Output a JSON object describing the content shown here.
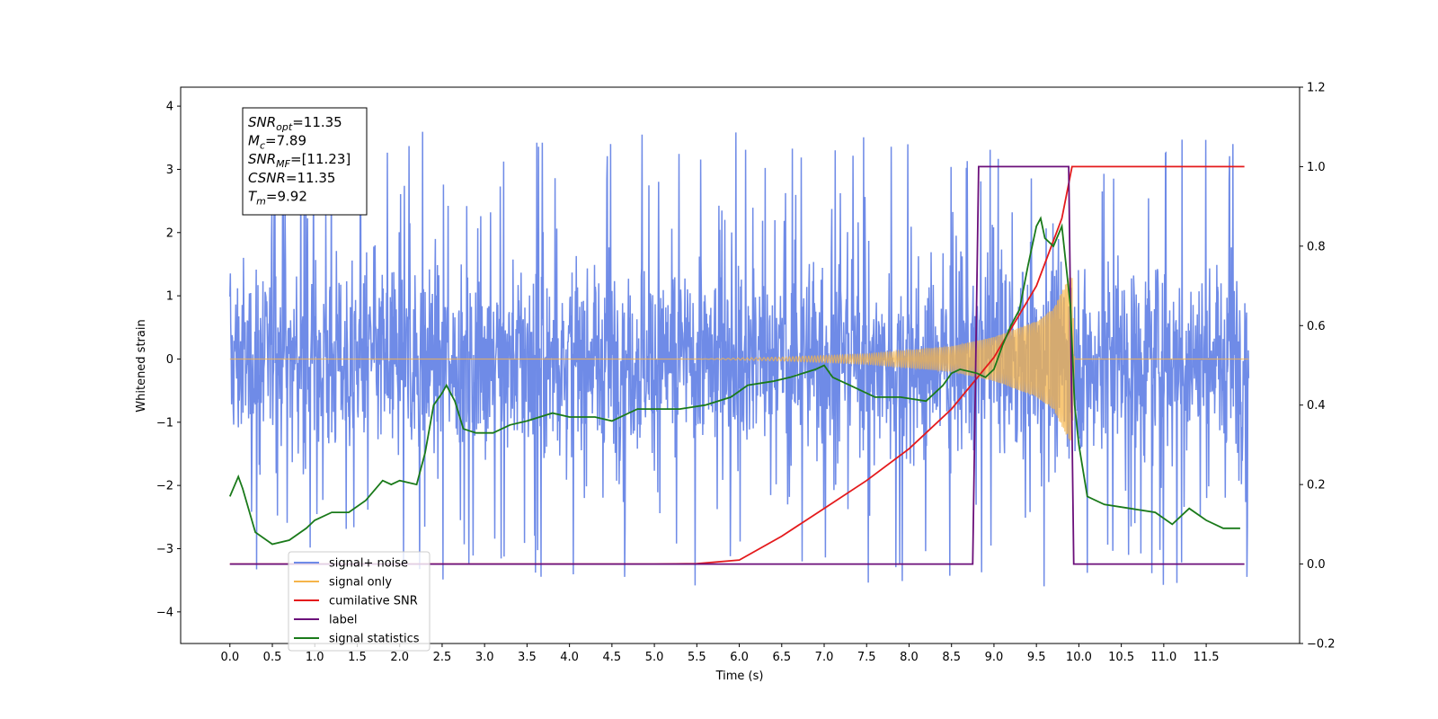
{
  "chart_data": {
    "type": "line",
    "xlabel": "Time (s)",
    "ylabel_left": "Whitened strain",
    "ylabel_right": "",
    "xlim": [
      -0.58,
      12.6
    ],
    "ylim_left": [
      -4.5,
      4.3
    ],
    "ylim_right": [
      -0.2,
      1.2
    ],
    "x_ticks": [
      "0.0",
      "0.5",
      "1.0",
      "1.5",
      "2.0",
      "2.5",
      "3.0",
      "3.5",
      "4.0",
      "4.5",
      "5.0",
      "5.5",
      "6.0",
      "6.5",
      "7.0",
      "7.5",
      "8.0",
      "8.5",
      "9.0",
      "9.5",
      "10.0",
      "10.5",
      "11.0",
      "11.5"
    ],
    "y_ticks_left": [
      "4",
      "3",
      "2",
      "1",
      "0",
      "−1",
      "−2",
      "−3",
      "−4"
    ],
    "y_ticks_right": [
      "1.2",
      "1.0",
      "0.8",
      "0.6",
      "0.4",
      "0.2",
      "0.0",
      "−0.2"
    ],
    "grid": false,
    "legend_position": "lower-left",
    "info_box": {
      "lines": [
        {
          "main": "SNR",
          "sub": "opt",
          "value": "=11.35"
        },
        {
          "main": "M",
          "sub": "c",
          "value": "=7.89"
        },
        {
          "main": "SNR",
          "sub": "MF",
          "value": "=[11.23]"
        },
        {
          "main": "CSNR",
          "sub": "",
          "value": "=11.35"
        },
        {
          "main": "T",
          "sub": "m",
          "value": "=9.92"
        }
      ]
    },
    "series": [
      {
        "name": "signal+ noise",
        "axis": "left",
        "color": "#6f8be7",
        "style": "noise",
        "t_start": 0.0,
        "t_end": 12.0,
        "band_amplitude": 2.1,
        "spike_max": 3.8
      },
      {
        "name": "signal only",
        "axis": "left",
        "color": "#f5b44a",
        "style": "chirp",
        "onset_time": 5.5,
        "merger_time": 9.92,
        "envelope": [
          [
            5.5,
            0.0
          ],
          [
            6.5,
            0.03
          ],
          [
            7.5,
            0.08
          ],
          [
            8.5,
            0.2
          ],
          [
            9.0,
            0.35
          ],
          [
            9.5,
            0.6
          ],
          [
            9.7,
            0.8
          ],
          [
            9.85,
            1.2
          ],
          [
            9.92,
            1.35
          ],
          [
            9.95,
            0.0
          ]
        ]
      },
      {
        "name": "cumilative SNR",
        "axis": "right",
        "color": "#e41a1c",
        "style": "line",
        "x": [
          0.0,
          5.0,
          5.5,
          6.0,
          6.5,
          7.0,
          7.5,
          8.0,
          8.5,
          9.0,
          9.5,
          9.8,
          9.92,
          9.93,
          11.95
        ],
        "y": [
          0.0,
          0.0,
          0.001,
          0.01,
          0.07,
          0.14,
          0.21,
          0.29,
          0.39,
          0.52,
          0.7,
          0.87,
          1.0,
          1.0,
          1.0
        ]
      },
      {
        "name": "label",
        "axis": "right",
        "color": "#6b0f7a",
        "style": "line",
        "x": [
          0.0,
          8.75,
          8.82,
          9.88,
          9.94,
          11.95
        ],
        "y": [
          0.0,
          0.0,
          1.0,
          1.0,
          0.0,
          0.0
        ]
      },
      {
        "name": "signal statistics",
        "axis": "right",
        "color": "#1a7a1a",
        "style": "line",
        "x": [
          0.0,
          0.1,
          0.15,
          0.3,
          0.5,
          0.7,
          0.9,
          1.0,
          1.2,
          1.4,
          1.6,
          1.8,
          1.9,
          2.0,
          2.2,
          2.3,
          2.4,
          2.5,
          2.55,
          2.65,
          2.75,
          2.9,
          3.1,
          3.3,
          3.5,
          3.8,
          4.0,
          4.3,
          4.5,
          4.8,
          5.0,
          5.3,
          5.6,
          5.9,
          6.1,
          6.4,
          6.6,
          6.9,
          7.0,
          7.1,
          7.3,
          7.6,
          7.9,
          8.2,
          8.4,
          8.5,
          8.6,
          8.8,
          8.9,
          9.0,
          9.1,
          9.2,
          9.3,
          9.4,
          9.5,
          9.55,
          9.6,
          9.7,
          9.8,
          9.9,
          9.95,
          10.0,
          10.1,
          10.3,
          10.6,
          10.9,
          11.1,
          11.3,
          11.5,
          11.7,
          11.9
        ],
        "y": [
          0.17,
          0.22,
          0.19,
          0.08,
          0.05,
          0.06,
          0.09,
          0.11,
          0.13,
          0.13,
          0.16,
          0.21,
          0.2,
          0.21,
          0.2,
          0.28,
          0.4,
          0.43,
          0.45,
          0.41,
          0.34,
          0.33,
          0.33,
          0.35,
          0.36,
          0.38,
          0.37,
          0.37,
          0.36,
          0.39,
          0.39,
          0.39,
          0.4,
          0.42,
          0.45,
          0.46,
          0.47,
          0.49,
          0.5,
          0.47,
          0.45,
          0.42,
          0.42,
          0.41,
          0.45,
          0.48,
          0.49,
          0.48,
          0.47,
          0.49,
          0.55,
          0.6,
          0.64,
          0.75,
          0.85,
          0.87,
          0.82,
          0.8,
          0.85,
          0.65,
          0.4,
          0.3,
          0.17,
          0.15,
          0.14,
          0.13,
          0.1,
          0.14,
          0.11,
          0.09,
          0.09
        ]
      }
    ]
  }
}
